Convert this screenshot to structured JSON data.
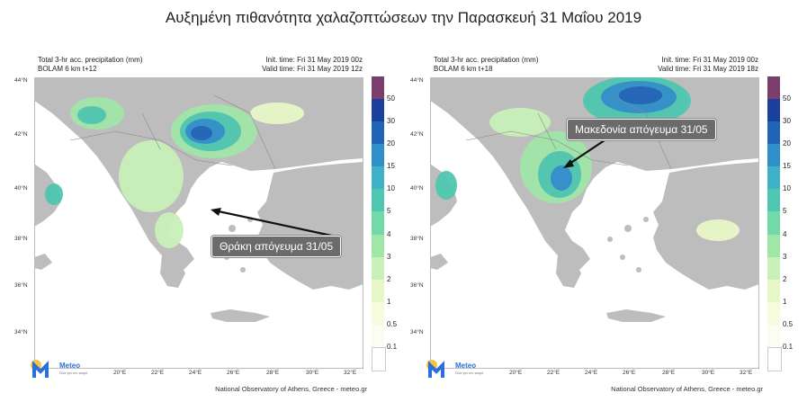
{
  "title": "Αυξημένη πιθανότητα χαλαζοπτώσεων την Παρασκευή 31 Μαΐου 2019",
  "colors": {
    "sea": "#ffffff",
    "land": "#bdbdbd",
    "border": "#8a8a8a",
    "arrow": "#111111",
    "callout_bg": "#6b6b6b"
  },
  "lat_labels": [
    "44°N",
    "42°N",
    "40°N",
    "38°N",
    "36°N",
    "34°N"
  ],
  "lon_labels": [
    "20°E",
    "22°E",
    "24°E",
    "26°E",
    "28°E",
    "30°E",
    "32°E"
  ],
  "colorbar": {
    "levels": [
      "50",
      "30",
      "20",
      "15",
      "10",
      "5",
      "4",
      "3",
      "2",
      "1",
      "0.5",
      "0.1"
    ],
    "colors": [
      "#7b3f6e",
      "#1a3f9c",
      "#1f64b6",
      "#2f8fc9",
      "#3fb2c9",
      "#4fc7b0",
      "#72d9a8",
      "#a0e6a8",
      "#c8f0b8",
      "#e8f7c8",
      "#f6fbdc",
      "#fcfdf0",
      "#ffffff"
    ]
  },
  "panels": [
    {
      "header_left": [
        "Total 3-hr acc. precipitation (mm)",
        "BOLAM 6 km t+12"
      ],
      "header_right": [
        "Init. time: Fri 31 May 2019 00z",
        "Valid time: Fri 31 May 2019 12z"
      ],
      "callout": "Θράκη απόγευμα 31/05",
      "footer": "National Observatory of Athens, Greece - meteo.gr",
      "logo_text": "Meteo",
      "logo_sub": "Όλα για τον καιρό"
    },
    {
      "header_left": [
        "Total 3-hr acc. precipitation (mm)",
        "BOLAM 6 km t+18"
      ],
      "header_right": [
        "Init. time: Fri 31 May 2019 00z",
        "Valid time: Fri 31 May 2019 18z"
      ],
      "callout": "Μακεδονία απόγευμα 31/05",
      "footer": "National Observatory of Athens, Greece - meteo.gr",
      "logo_text": "Meteo",
      "logo_sub": "Όλα για τον καιρό"
    }
  ]
}
